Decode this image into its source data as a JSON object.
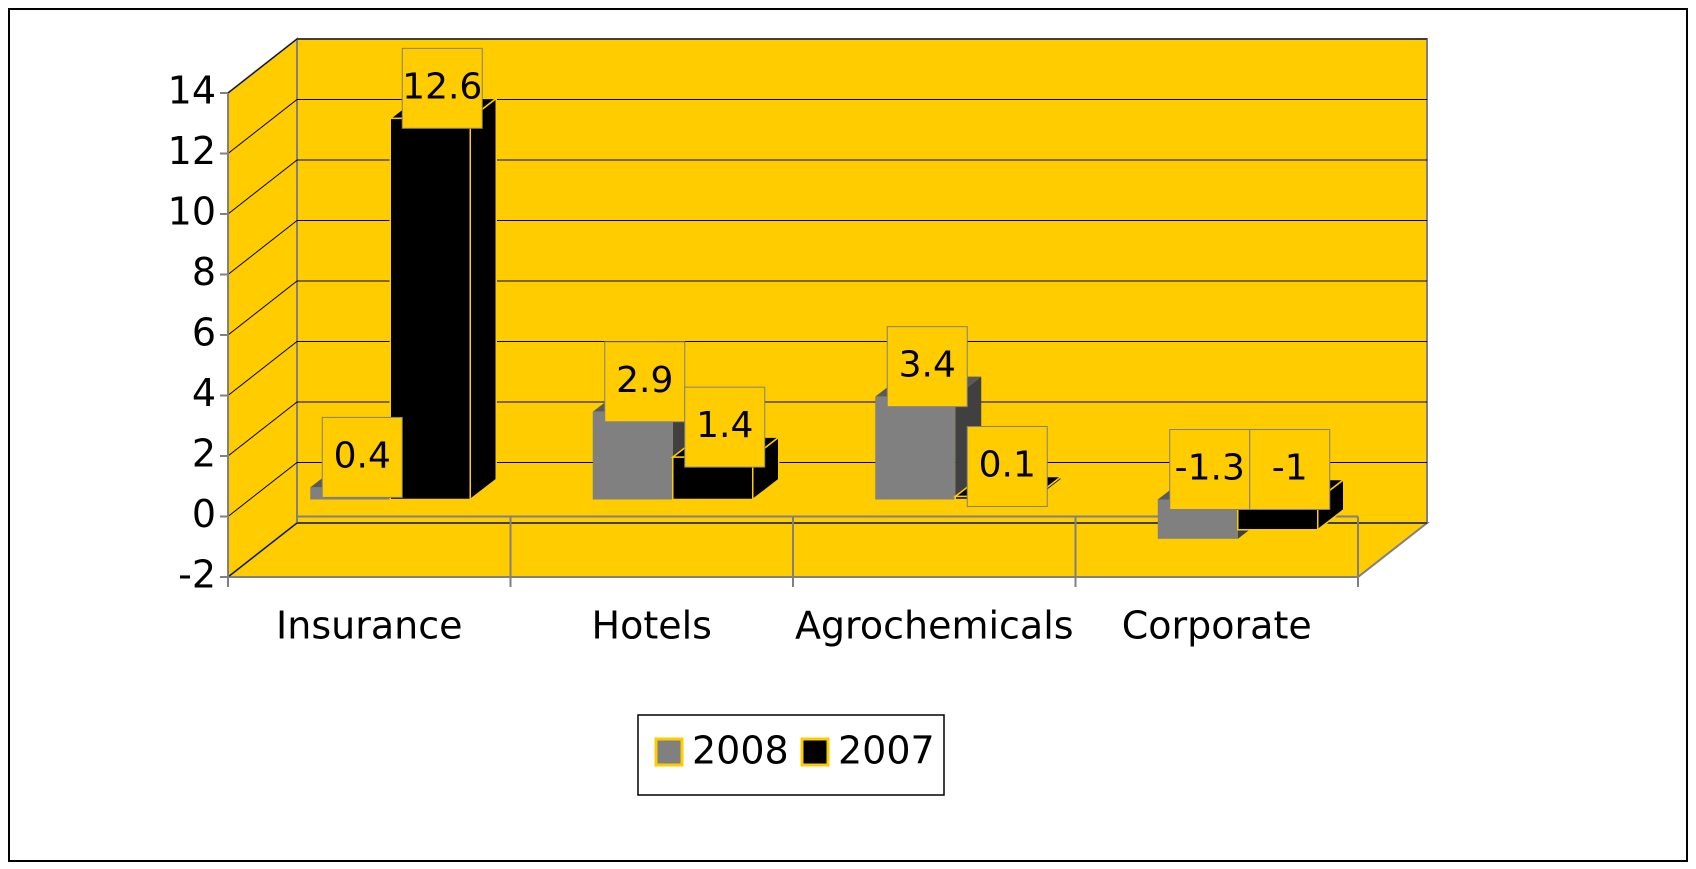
{
  "chart_data": {
    "type": "bar3d",
    "categories": [
      "Insurance",
      "Hotels",
      "Agrochemicals",
      "Corporate"
    ],
    "series": [
      {
        "name": "2008",
        "color": "#808080",
        "values": [
          0.4,
          2.9,
          3.4,
          -1.3
        ]
      },
      {
        "name": "2007",
        "color": "#000000",
        "values": [
          12.6,
          1.4,
          0.1,
          -1
        ]
      }
    ],
    "ylim": [
      -2,
      14
    ],
    "yticks": [
      -2,
      0,
      2,
      4,
      6,
      8,
      10,
      12,
      14
    ],
    "grid": true,
    "wall_color": "#ffcc00",
    "legend": "bottom"
  }
}
